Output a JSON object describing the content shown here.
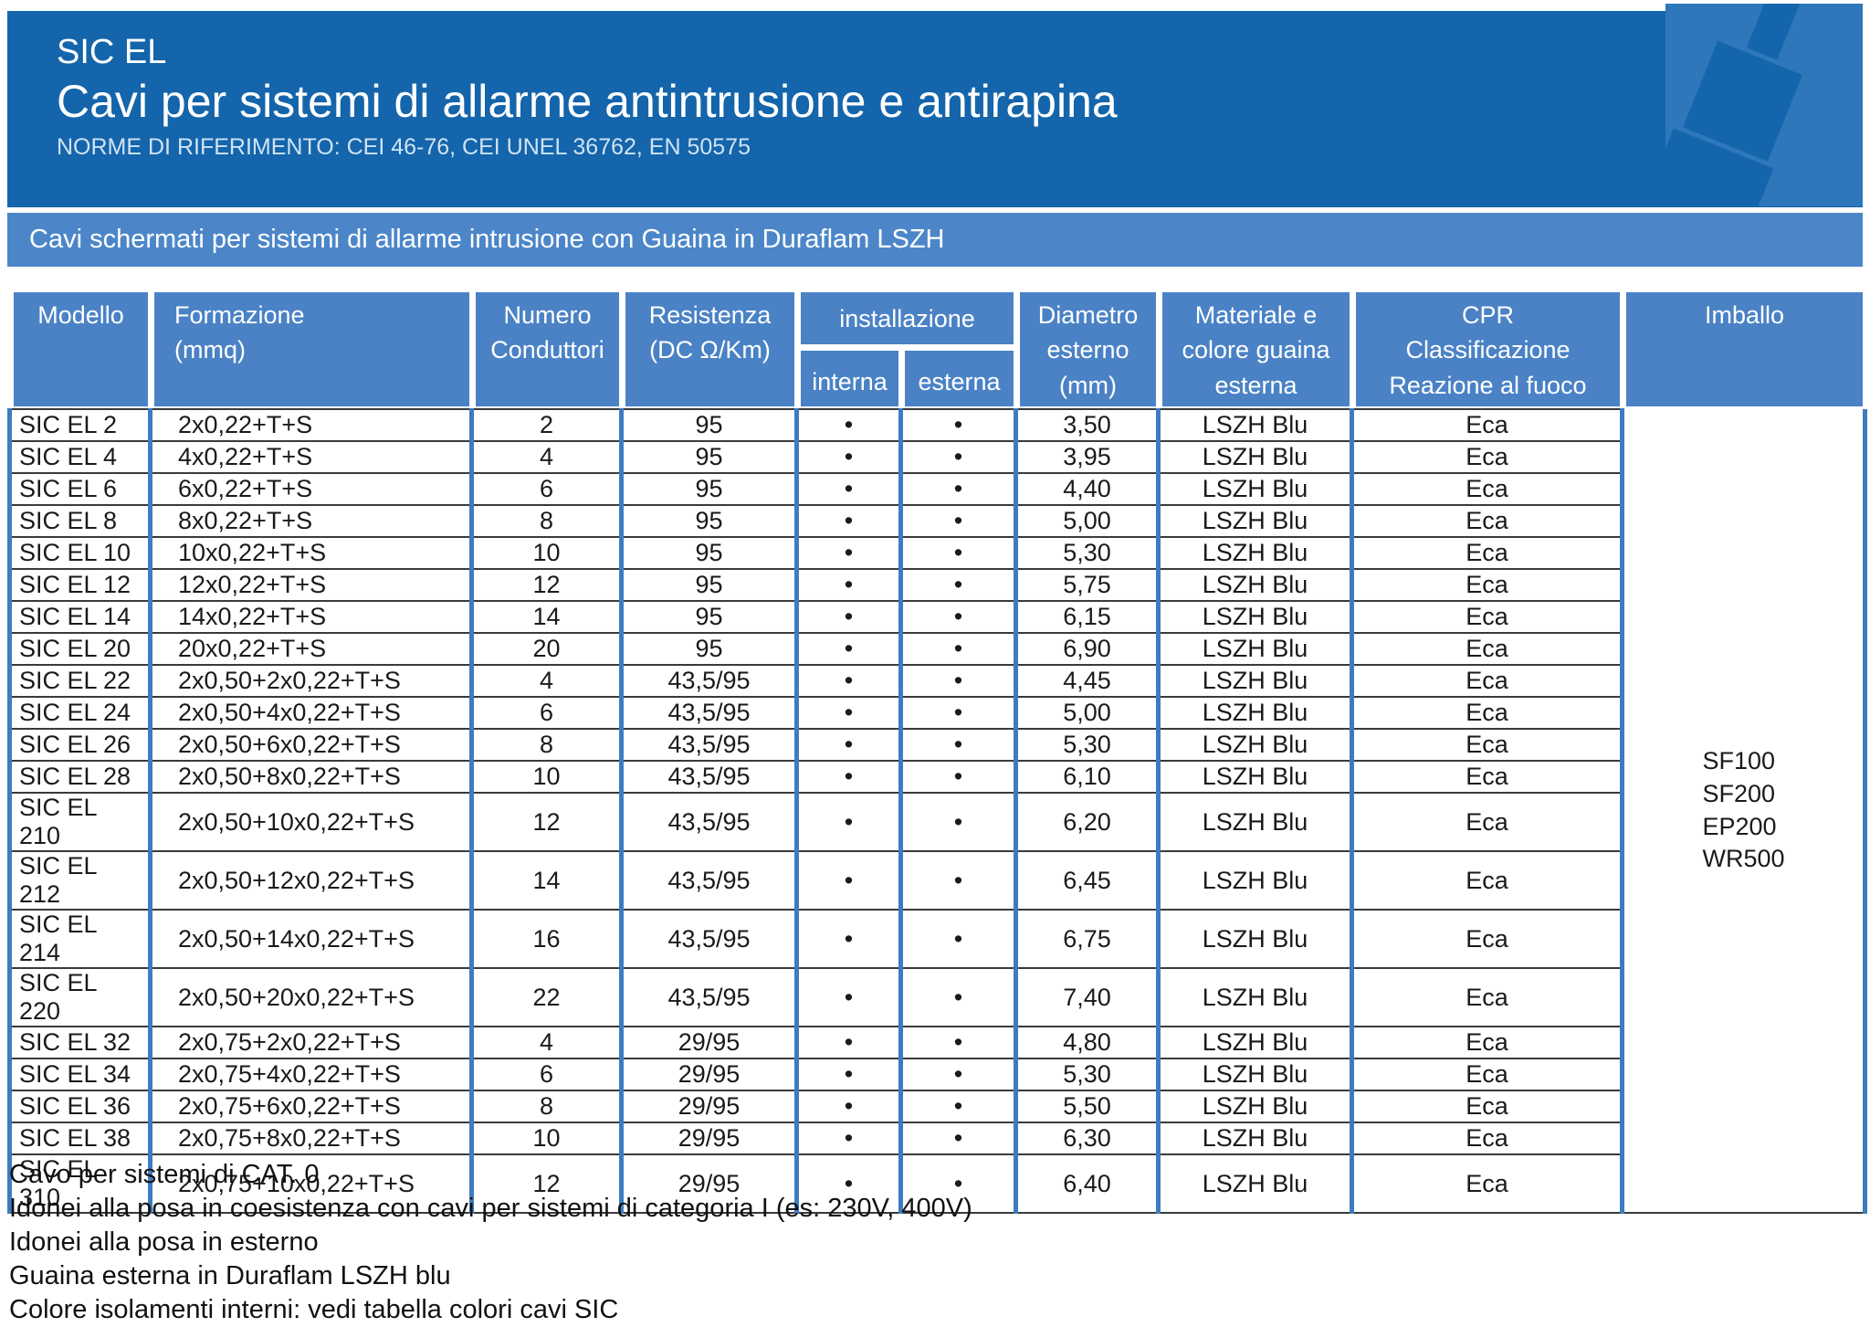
{
  "header": {
    "product": "SIC EL",
    "title": "Cavi per sistemi di allarme antintrusione e antirapina",
    "norms": "NORME DI RIFERIMENTO: CEI 46-76, CEI UNEL 36762, EN 50575",
    "bg_color": "#1465ab",
    "panel_color": "#2f77bb",
    "icon": "cable-connector-icon"
  },
  "banner": {
    "text": "Cavi schermati per sistemi di allarme intrusione con Guaina in Duraflam LSZH",
    "bg_color": "#4c86c9"
  },
  "table": {
    "header": {
      "modello": "Modello",
      "formazione": "Formazione\n(mmq)",
      "numero": "Numero\nConduttori",
      "resistenza": "Resistenza\n(DC Ω/Km)",
      "installazione": "installazione",
      "interna": "interna",
      "esterna": "esterna",
      "diametro": "Diametro\nesterno\n(mm)",
      "materiale": "Materiale e\ncolore guaina\nesterna",
      "cpr": "CPR\nClassificazione\nReazione al fuoco",
      "imballo": "Imballo"
    },
    "rows": [
      {
        "model": "SIC EL 2",
        "formation": "2x0,22+T+S",
        "conductors": "2",
        "resistance": "95",
        "interna": "•",
        "esterna": "•",
        "diameter": "3,50",
        "sheath": "LSZH Blu",
        "cpr": "Eca"
      },
      {
        "model": "SIC EL 4",
        "formation": "4x0,22+T+S",
        "conductors": "4",
        "resistance": "95",
        "interna": "•",
        "esterna": "•",
        "diameter": "3,95",
        "sheath": "LSZH Blu",
        "cpr": "Eca"
      },
      {
        "model": "SIC EL 6",
        "formation": "6x0,22+T+S",
        "conductors": "6",
        "resistance": "95",
        "interna": "•",
        "esterna": "•",
        "diameter": "4,40",
        "sheath": "LSZH Blu",
        "cpr": "Eca"
      },
      {
        "model": "SIC EL 8",
        "formation": "8x0,22+T+S",
        "conductors": "8",
        "resistance": "95",
        "interna": "•",
        "esterna": "•",
        "diameter": "5,00",
        "sheath": "LSZH Blu",
        "cpr": "Eca"
      },
      {
        "model": "SIC EL 10",
        "formation": "10x0,22+T+S",
        "conductors": "10",
        "resistance": "95",
        "interna": "•",
        "esterna": "•",
        "diameter": "5,30",
        "sheath": "LSZH Blu",
        "cpr": "Eca"
      },
      {
        "model": "SIC EL 12",
        "formation": "12x0,22+T+S",
        "conductors": "12",
        "resistance": "95",
        "interna": "•",
        "esterna": "•",
        "diameter": "5,75",
        "sheath": "LSZH Blu",
        "cpr": "Eca"
      },
      {
        "model": "SIC EL 14",
        "formation": "14x0,22+T+S",
        "conductors": "14",
        "resistance": "95",
        "interna": "•",
        "esterna": "•",
        "diameter": "6,15",
        "sheath": "LSZH Blu",
        "cpr": "Eca"
      },
      {
        "model": "SIC EL 20",
        "formation": "20x0,22+T+S",
        "conductors": "20",
        "resistance": "95",
        "interna": "•",
        "esterna": "•",
        "diameter": "6,90",
        "sheath": "LSZH Blu",
        "cpr": "Eca"
      },
      {
        "model": "SIC EL 22",
        "formation": "2x0,50+2x0,22+T+S",
        "conductors": "4",
        "resistance": "43,5/95",
        "interna": "•",
        "esterna": "•",
        "diameter": "4,45",
        "sheath": "LSZH Blu",
        "cpr": "Eca"
      },
      {
        "model": "SIC EL 24",
        "formation": "2x0,50+4x0,22+T+S",
        "conductors": "6",
        "resistance": "43,5/95",
        "interna": "•",
        "esterna": "•",
        "diameter": "5,00",
        "sheath": "LSZH Blu",
        "cpr": "Eca"
      },
      {
        "model": "SIC EL 26",
        "formation": "2x0,50+6x0,22+T+S",
        "conductors": "8",
        "resistance": "43,5/95",
        "interna": "•",
        "esterna": "•",
        "diameter": "5,30",
        "sheath": "LSZH Blu",
        "cpr": "Eca"
      },
      {
        "model": "SIC EL 28",
        "formation": "2x0,50+8x0,22+T+S",
        "conductors": "10",
        "resistance": "43,5/95",
        "interna": "•",
        "esterna": "•",
        "diameter": "6,10",
        "sheath": "LSZH Blu",
        "cpr": "Eca"
      },
      {
        "model": "SIC EL 210",
        "formation": "2x0,50+10x0,22+T+S",
        "conductors": "12",
        "resistance": "43,5/95",
        "interna": "•",
        "esterna": "•",
        "diameter": "6,20",
        "sheath": "LSZH Blu",
        "cpr": "Eca"
      },
      {
        "model": "SIC EL 212",
        "formation": "2x0,50+12x0,22+T+S",
        "conductors": "14",
        "resistance": "43,5/95",
        "interna": "•",
        "esterna": "•",
        "diameter": "6,45",
        "sheath": "LSZH Blu",
        "cpr": "Eca"
      },
      {
        "model": "SIC EL 214",
        "formation": "2x0,50+14x0,22+T+S",
        "conductors": "16",
        "resistance": "43,5/95",
        "interna": "•",
        "esterna": "•",
        "diameter": "6,75",
        "sheath": "LSZH Blu",
        "cpr": "Eca"
      },
      {
        "model": "SIC EL 220",
        "formation": "2x0,50+20x0,22+T+S",
        "conductors": "22",
        "resistance": "43,5/95",
        "interna": "•",
        "esterna": "•",
        "diameter": "7,40",
        "sheath": "LSZH Blu",
        "cpr": "Eca"
      },
      {
        "model": "SIC EL 32",
        "formation": "2x0,75+2x0,22+T+S",
        "conductors": "4",
        "resistance": "29/95",
        "interna": "•",
        "esterna": "•",
        "diameter": "4,80",
        "sheath": "LSZH Blu",
        "cpr": "Eca"
      },
      {
        "model": "SIC EL 34",
        "formation": "2x0,75+4x0,22+T+S",
        "conductors": "6",
        "resistance": "29/95",
        "interna": "•",
        "esterna": "•",
        "diameter": "5,30",
        "sheath": "LSZH Blu",
        "cpr": "Eca"
      },
      {
        "model": "SIC EL 36",
        "formation": "2x0,75+6x0,22+T+S",
        "conductors": "8",
        "resistance": "29/95",
        "interna": "•",
        "esterna": "•",
        "diameter": "5,50",
        "sheath": "LSZH Blu",
        "cpr": "Eca"
      },
      {
        "model": "SIC EL 38",
        "formation": "2x0,75+8x0,22+T+S",
        "conductors": "10",
        "resistance": "29/95",
        "interna": "•",
        "esterna": "•",
        "diameter": "6,30",
        "sheath": "LSZH Blu",
        "cpr": "Eca"
      },
      {
        "model": "SIC EL 310",
        "formation": "2x0,75+10x0,22+T+S",
        "conductors": "12",
        "resistance": "29/95",
        "interna": "•",
        "esterna": "•",
        "diameter": "6,40",
        "sheath": "LSZH Blu",
        "cpr": "Eca"
      }
    ],
    "imballo_values": [
      "SF100",
      "SF200",
      "EP200",
      "WR500"
    ]
  },
  "footer": {
    "notes": [
      "Cavo per sistemi di CAT. 0",
      "Idonei alla posa in coesistenza con cavi per sistemi di categoria I (es: 230V, 400V)",
      "Idonei alla posa in esterno",
      "Guaina esterna in Duraflam LSZH blu",
      "Colore isolamenti interni: vedi tabella colori cavi SIC"
    ]
  }
}
